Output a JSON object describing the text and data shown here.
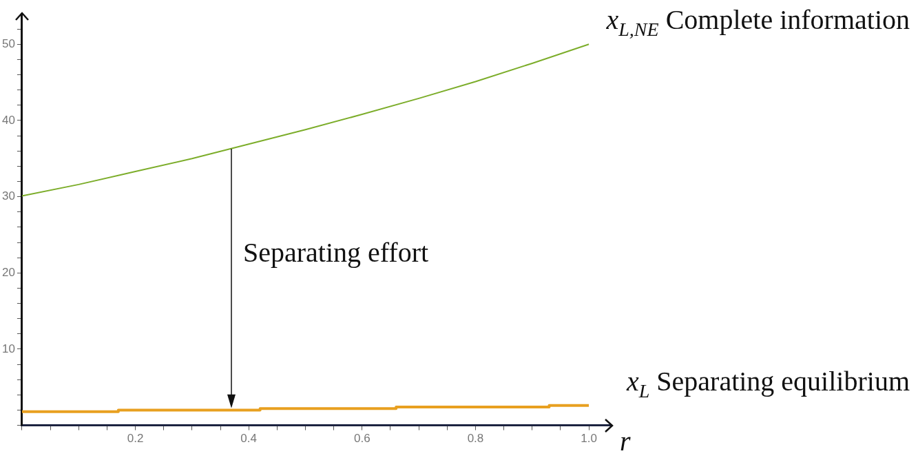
{
  "chart_data": {
    "type": "line",
    "xlabel": "r",
    "xlim": [
      0,
      1.04
    ],
    "ylim": [
      0,
      54
    ],
    "xticks": [
      {
        "value": 0,
        "label": null
      },
      {
        "value": 0.05,
        "label": null
      },
      {
        "value": 0.1,
        "label": null
      },
      {
        "value": 0.15,
        "label": null
      },
      {
        "value": 0.2,
        "label": "0.2"
      },
      {
        "value": 0.25,
        "label": null
      },
      {
        "value": 0.3,
        "label": null
      },
      {
        "value": 0.35,
        "label": null
      },
      {
        "value": 0.4,
        "label": "0.4"
      },
      {
        "value": 0.45,
        "label": null
      },
      {
        "value": 0.5,
        "label": null
      },
      {
        "value": 0.55,
        "label": null
      },
      {
        "value": 0.6,
        "label": "0.6"
      },
      {
        "value": 0.65,
        "label": null
      },
      {
        "value": 0.7,
        "label": null
      },
      {
        "value": 0.75,
        "label": null
      },
      {
        "value": 0.8,
        "label": "0.8"
      },
      {
        "value": 0.85,
        "label": null
      },
      {
        "value": 0.9,
        "label": null
      },
      {
        "value": 0.95,
        "label": null
      },
      {
        "value": 1,
        "label": "1.0"
      }
    ],
    "yticks": [
      {
        "value": 0,
        "label": null
      },
      {
        "value": 2,
        "label": null
      },
      {
        "value": 4,
        "label": null
      },
      {
        "value": 6,
        "label": null
      },
      {
        "value": 8,
        "label": null
      },
      10,
      {
        "value": 12,
        "label": null
      },
      {
        "value": 14,
        "label": null
      },
      {
        "value": 16,
        "label": null
      },
      {
        "value": 18,
        "label": null
      },
      20,
      {
        "value": 22,
        "label": null
      },
      {
        "value": 24,
        "label": null
      },
      {
        "value": 26,
        "label": null
      },
      {
        "value": 28,
        "label": null
      },
      30,
      {
        "value": 32,
        "label": null
      },
      {
        "value": 34,
        "label": null
      },
      {
        "value": 36,
        "label": null
      },
      {
        "value": 38,
        "label": null
      },
      40,
      {
        "value": 42,
        "label": null
      },
      {
        "value": 44,
        "label": null
      },
      {
        "value": 46,
        "label": null
      },
      {
        "value": 48,
        "label": null
      },
      50,
      {
        "value": 52,
        "label": null
      }
    ],
    "grid": false,
    "legend": false,
    "marker": "none",
    "line_style": "solid",
    "annotations": [
      "Separating effort"
    ],
    "series": [
      {
        "name": "x$_{L,NE}$ Complete information",
        "color": "#7cad2a",
        "x": [
          0,
          0.1,
          0.2,
          0.3,
          0.4,
          0.5,
          0.6,
          0.7,
          0.8,
          0.9,
          1
        ],
        "values": [
          30.1,
          31.6,
          33.3,
          35.0,
          36.9,
          38.8,
          40.8,
          42.9,
          45.1,
          47.5,
          50.0
        ]
      },
      {
        "name": "x$_{L}$ Separating equilibrium",
        "color": "#e8a020",
        "x": [
          0,
          0.17,
          0.17,
          0.42,
          0.42,
          0.66,
          0.66,
          0.93,
          0.93,
          1
        ],
        "values": [
          1.8,
          1.8,
          2.0,
          2.0,
          2.2,
          2.2,
          2.4,
          2.4,
          2.6,
          2.6
        ]
      }
    ]
  }
}
